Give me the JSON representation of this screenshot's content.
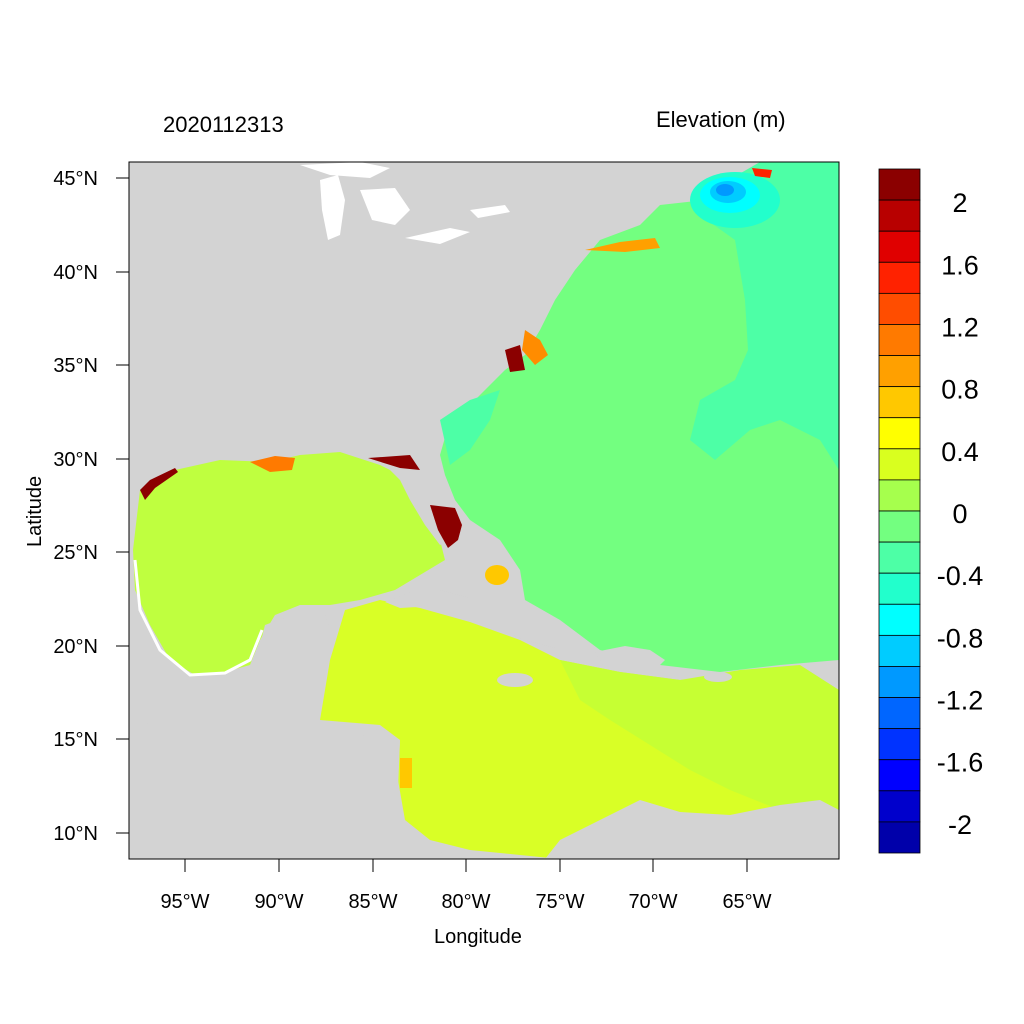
{
  "title_left": "2020112313",
  "title_right": "Elevation (m)",
  "x_axis": {
    "label": "Longitude",
    "ticks": [
      "95°W",
      "90°W",
      "85°W",
      "80°W",
      "75°W",
      "70°W",
      "65°W"
    ]
  },
  "y_axis": {
    "label": "Latitude",
    "ticks": [
      "45°N",
      "40°N",
      "35°N",
      "30°N",
      "25°N",
      "20°N",
      "15°N",
      "10°N"
    ]
  },
  "colorbar": {
    "labels": [
      "2",
      "1.6",
      "1.2",
      "0.8",
      "0.4",
      "0",
      "-0.4",
      "-0.8",
      "-1.2",
      "-1.6",
      "-2"
    ],
    "colors": [
      "#8b0000",
      "#b80000",
      "#e00000",
      "#ff2200",
      "#ff4d00",
      "#ff7a00",
      "#ffa000",
      "#ffc800",
      "#ffff00",
      "#d9ff1f",
      "#a6ff4d",
      "#73ff80",
      "#4dffa6",
      "#22ffcc",
      "#00ffff",
      "#00ccff",
      "#0099ff",
      "#0066ff",
      "#0033ff",
      "#0000ff",
      "#0000cc",
      "#0000aa"
    ]
  },
  "colors": {
    "land": "#d3d3d3",
    "gulf": "#bfff3f",
    "caribbean": "#d9ff26",
    "atlantic": "#73ff80",
    "atlantic_deep": "#4dffa6",
    "surge_high": "#8b0000",
    "low": "#00ccff"
  }
}
